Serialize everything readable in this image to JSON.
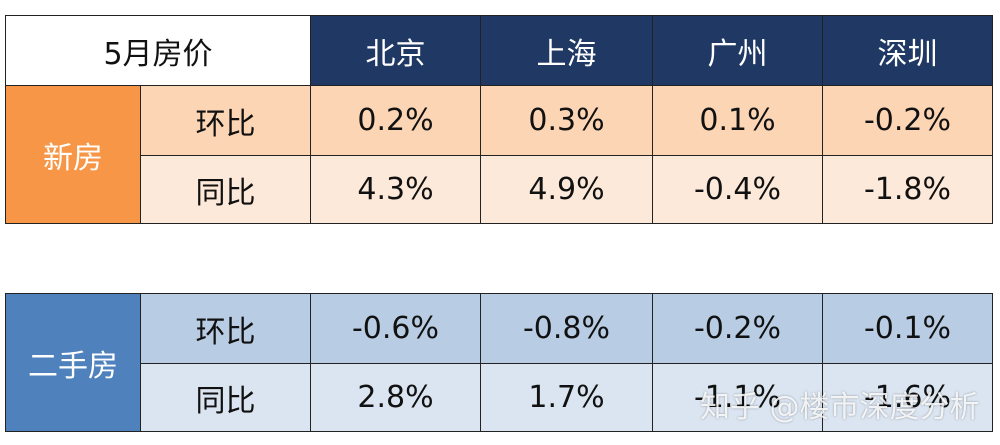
{
  "header": {
    "title": "5月房价",
    "cities": [
      "北京",
      "上海",
      "广州",
      "深圳"
    ]
  },
  "sections": [
    {
      "name": "新房",
      "rows": [
        {
          "metric": "环比",
          "values": [
            "0.2%",
            "0.3%",
            "0.1%",
            "-0.2%"
          ]
        },
        {
          "metric": "同比",
          "values": [
            "4.3%",
            "4.9%",
            "-0.4%",
            "-1.8%"
          ]
        }
      ]
    },
    {
      "name": "二手房",
      "rows": [
        {
          "metric": "环比",
          "values": [
            "-0.6%",
            "-0.8%",
            "-0.2%",
            "-0.1%"
          ]
        },
        {
          "metric": "同比",
          "values": [
            "2.8%",
            "1.7%",
            "-1.1%",
            "-1.6%"
          ]
        }
      ]
    }
  ],
  "watermark": "知乎 @楼市深度分析"
}
